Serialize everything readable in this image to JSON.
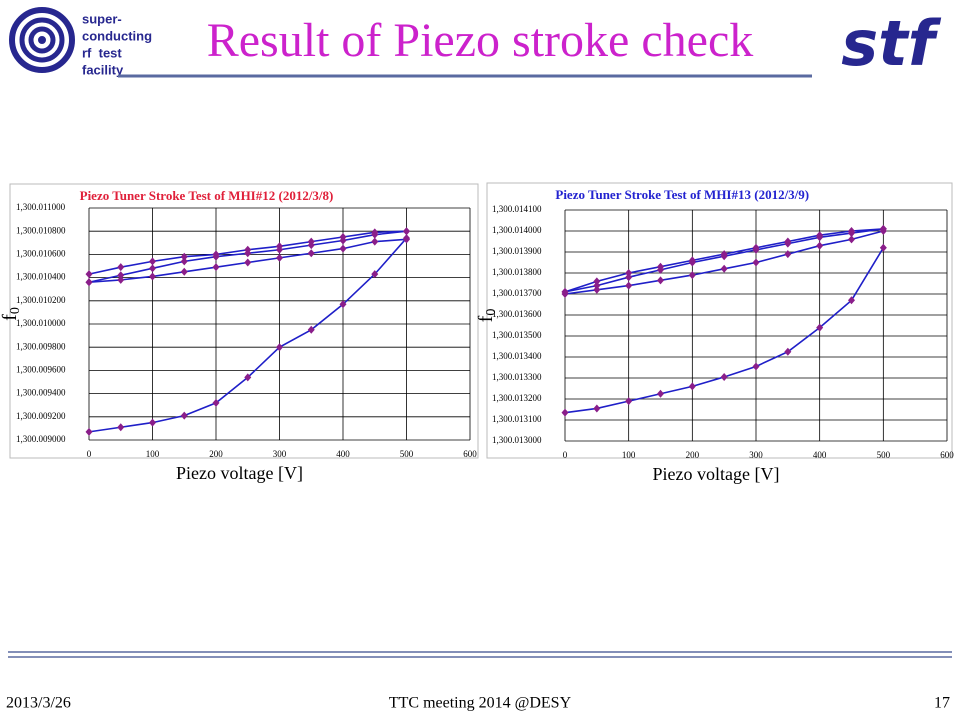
{
  "slide": {
    "title": "Result of Piezo stroke check",
    "logo_left": [
      "super-",
      "conducting",
      "rf  test",
      "facility"
    ],
    "logo_right": "stf",
    "footer_date": "2013/3/26",
    "footer_center": "TTC meeting 2014 @DESY",
    "footer_page": "17"
  },
  "chart_data": [
    {
      "type": "line",
      "title": "Piezo Tuner Stroke Test of MHI#12 (2012/3/8)",
      "title_color": "#e0203a",
      "xlabel": "Piezo voltage [V]",
      "ylabel": "f",
      "ylabel_sub": "0",
      "xlim": [
        0,
        600
      ],
      "xticks": [
        0,
        100,
        200,
        300,
        400,
        500,
        600
      ],
      "ylim": [
        1300.009,
        1300.011
      ],
      "yticks": [
        {
          "value": 1300.009,
          "label": "1,300.009000"
        },
        {
          "value": 1300.0092,
          "label": "1,300.009200"
        },
        {
          "value": 1300.0094,
          "label": "1,300.009400"
        },
        {
          "value": 1300.0096,
          "label": "1,300.009600"
        },
        {
          "value": 1300.0098,
          "label": "1,300.009800"
        },
        {
          "value": 1300.01,
          "label": "1,300.010000"
        },
        {
          "value": 1300.0102,
          "label": "1,300.010200"
        },
        {
          "value": 1300.0104,
          "label": "1,300.010400"
        },
        {
          "value": 1300.0106,
          "label": "1,300.010600"
        },
        {
          "value": 1300.0108,
          "label": "1,300.010800"
        },
        {
          "value": 1300.011,
          "label": "1,300.011000"
        }
      ],
      "grid": true,
      "line_color": "#1f1fc8",
      "marker_color": "#8a1e8a",
      "x": [
        0,
        50,
        100,
        150,
        200,
        250,
        300,
        350,
        400,
        450,
        500
      ],
      "series": [
        {
          "values": [
            1300.00907,
            1300.00911,
            1300.00915,
            1300.00921,
            1300.00932,
            1300.00954,
            1300.0098,
            1300.00995,
            1300.01017,
            1300.01043,
            1300.01074
          ]
        },
        {
          "values": [
            1300.01043,
            1300.01049,
            1300.01054,
            1300.01058,
            1300.0106,
            1300.01064,
            1300.01067,
            1300.01071,
            1300.01075,
            1300.01079,
            1300.0108
          ]
        },
        {
          "values": [
            1300.01036,
            1300.01042,
            1300.01048,
            1300.01054,
            1300.01058,
            1300.01061,
            1300.01064,
            1300.01068,
            1300.01072,
            1300.01077,
            1300.0108
          ]
        },
        {
          "values": [
            1300.01036,
            1300.01038,
            1300.01041,
            1300.01045,
            1300.01049,
            1300.01053,
            1300.01057,
            1300.01061,
            1300.01065,
            1300.01071,
            1300.01073
          ]
        }
      ]
    },
    {
      "type": "line",
      "title": "Piezo Tuner Stroke Test of MHI#13 (2012/3/9)",
      "title_color": "#2323d0",
      "xlabel": "Piezo voltage [V]",
      "ylabel": "f",
      "ylabel_sub": "0",
      "xlim": [
        0,
        600
      ],
      "xticks": [
        0,
        100,
        200,
        300,
        400,
        500,
        600
      ],
      "ylim": [
        1300.013,
        1300.0141
      ],
      "yticks": [
        {
          "value": 1300.013,
          "label": "1,300.013000"
        },
        {
          "value": 1300.0131,
          "label": "1,300.013100"
        },
        {
          "value": 1300.0132,
          "label": "1,300.013200"
        },
        {
          "value": 1300.0133,
          "label": "1,300.013300"
        },
        {
          "value": 1300.0134,
          "label": "1,300.013400"
        },
        {
          "value": 1300.0135,
          "label": "1,300.013500"
        },
        {
          "value": 1300.0136,
          "label": "1,300.013600"
        },
        {
          "value": 1300.0137,
          "label": "1,300.013700"
        },
        {
          "value": 1300.0138,
          "label": "1,300.013800"
        },
        {
          "value": 1300.0139,
          "label": "1,300.013900"
        },
        {
          "value": 1300.014,
          "label": "1,300.014000"
        },
        {
          "value": 1300.0141,
          "label": "1,300.014100"
        }
      ],
      "grid": true,
      "line_color": "#1f1fc8",
      "marker_color": "#8a1e8a",
      "x": [
        0,
        50,
        100,
        150,
        200,
        250,
        300,
        350,
        400,
        450,
        500
      ],
      "series": [
        {
          "values": [
            1300.013135,
            1300.013155,
            1300.01319,
            1300.013225,
            1300.01326,
            1300.013305,
            1300.013355,
            1300.013425,
            1300.01354,
            1300.01367,
            1300.01392
          ]
        },
        {
          "values": [
            1300.01371,
            1300.01376,
            1300.0138,
            1300.01383,
            1300.01386,
            1300.01389,
            1300.01392,
            1300.01395,
            1300.01398,
            1300.014,
            1300.01401
          ]
        },
        {
          "values": [
            1300.01371,
            1300.01374,
            1300.01378,
            1300.013815,
            1300.01385,
            1300.01388,
            1300.01391,
            1300.01394,
            1300.01397,
            1300.01399,
            1300.01401
          ]
        },
        {
          "values": [
            1300.0137,
            1300.01372,
            1300.01374,
            1300.013765,
            1300.01379,
            1300.01382,
            1300.01385,
            1300.01389,
            1300.01393,
            1300.01396,
            1300.014
          ]
        }
      ]
    }
  ]
}
